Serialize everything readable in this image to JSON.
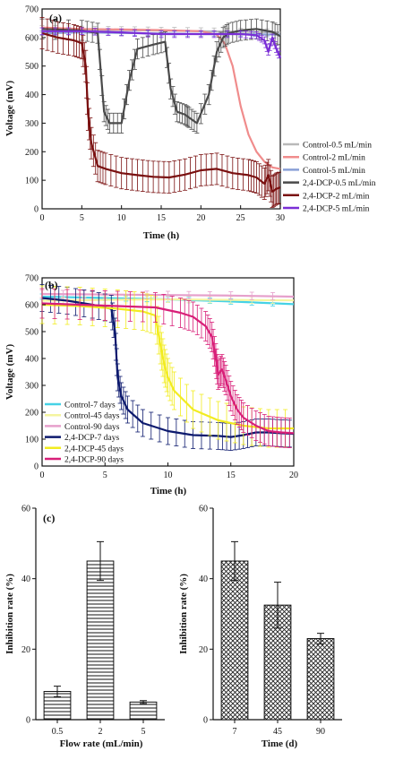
{
  "chart_data": [
    {
      "type": "line",
      "panel_label": "(a)",
      "xlabel": "Time (h)",
      "ylabel": "Voltage (mV)",
      "xlim": [
        0,
        30
      ],
      "ylim": [
        0,
        700
      ],
      "xticks": [
        0,
        5,
        10,
        15,
        20,
        25,
        30
      ],
      "yticks": [
        0,
        100,
        200,
        300,
        400,
        500,
        600,
        700
      ],
      "legend_position": "bottom-right",
      "series": [
        {
          "name": "Control-0.5 mL/min",
          "color": "#b9b9b9",
          "x": [
            0,
            5,
            10,
            15,
            20,
            25,
            30
          ],
          "y": [
            630,
            628,
            626,
            624,
            622,
            620,
            618
          ],
          "err": 12
        },
        {
          "name": "Control-2 mL/min",
          "color": "#f08c8c",
          "x": [
            0,
            5,
            10,
            15,
            20,
            22,
            23,
            24,
            25,
            26,
            27,
            28,
            29,
            30
          ],
          "y": [
            635,
            630,
            628,
            626,
            622,
            610,
            580,
            500,
            360,
            260,
            200,
            165,
            145,
            140
          ],
          "err": 0
        },
        {
          "name": "Control-5 mL/min",
          "color": "#8aa0d6",
          "x": [
            0,
            5,
            10,
            15,
            20,
            25,
            30
          ],
          "y": [
            615,
            618,
            616,
            614,
            612,
            612,
            610
          ],
          "err": 8
        },
        {
          "name": "2,4-DCP-0.5 mL/min",
          "color": "#4a4a4a",
          "x": [
            0,
            5,
            7,
            7.8,
            8.5,
            10,
            11,
            12,
            14,
            15.5,
            16.2,
            17,
            18,
            18.5,
            19.5,
            21,
            22,
            22.8,
            23.5,
            25,
            27,
            29,
            30
          ],
          "y": [
            630,
            625,
            615,
            340,
            300,
            300,
            450,
            560,
            575,
            585,
            420,
            340,
            330,
            320,
            300,
            400,
            550,
            600,
            615,
            625,
            630,
            620,
            605
          ],
          "err": 35
        },
        {
          "name": "2,4-DCP-2 mL/min",
          "color": "#7a1010",
          "x": [
            0,
            2,
            4,
            5,
            5.5,
            5.8,
            6.2,
            7,
            8,
            10,
            12,
            14,
            16,
            18,
            20,
            22,
            24,
            26,
            27,
            28,
            28.5,
            29,
            29.5,
            30
          ],
          "y": [
            615,
            600,
            590,
            580,
            500,
            330,
            230,
            150,
            140,
            125,
            118,
            112,
            110,
            120,
            135,
            140,
            125,
            118,
            110,
            88,
            118,
            60,
            70,
            75
          ],
          "err": 55
        },
        {
          "name": "2,4-DCP-5 mL/min",
          "color": "#7a2ed6",
          "x": [
            0,
            5,
            10,
            15,
            20,
            25,
            27,
            28,
            28.5,
            29,
            29.5,
            30
          ],
          "y": [
            622,
            622,
            618,
            612,
            612,
            612,
            608,
            590,
            550,
            600,
            560,
            530
          ],
          "err": 12
        }
      ]
    },
    {
      "type": "line",
      "panel_label": "(b)",
      "xlabel": "Time (h)",
      "ylabel": "Voltage (mV)",
      "xlim": [
        0,
        20
      ],
      "ylim": [
        0,
        700
      ],
      "xticks": [
        0,
        5,
        10,
        15,
        20
      ],
      "yticks": [
        0,
        100,
        200,
        300,
        400,
        500,
        600,
        700
      ],
      "legend_position": "bottom-left",
      "series": [
        {
          "name": "Control-7 days",
          "color": "#46d2e6",
          "x": [
            0,
            5,
            10,
            15,
            20
          ],
          "y": [
            630,
            625,
            620,
            612,
            602
          ],
          "err": 10
        },
        {
          "name": "Control-45 days",
          "color": "#f5f5a0",
          "x": [
            0,
            5,
            10,
            15,
            20
          ],
          "y": [
            615,
            618,
            620,
            618,
            616
          ],
          "err": 12
        },
        {
          "name": "Control-90 days",
          "color": "#e6a0cc",
          "x": [
            0,
            5,
            10,
            15,
            20
          ],
          "y": [
            640,
            638,
            636,
            634,
            630
          ],
          "err": 14
        },
        {
          "name": "2,4-DCP-7 days",
          "color": "#0d1a6e",
          "x": [
            0,
            2,
            4,
            5.5,
            5.8,
            6,
            6.3,
            6.8,
            8,
            10,
            12,
            14,
            15,
            16,
            17,
            18,
            19,
            20
          ],
          "y": [
            625,
            615,
            600,
            585,
            500,
            330,
            260,
            210,
            160,
            130,
            115,
            112,
            108,
            115,
            125,
            125,
            122,
            120
          ],
          "err": 50
        },
        {
          "name": "2,4-DCP-45 days",
          "color": "#f2ec20",
          "x": [
            0,
            3,
            6,
            8,
            9,
            9.4,
            9.7,
            10,
            10.5,
            12,
            14,
            16,
            18,
            20
          ],
          "y": [
            600,
            595,
            585,
            575,
            560,
            450,
            380,
            330,
            280,
            210,
            170,
            150,
            140,
            140
          ],
          "err": 70
        },
        {
          "name": "2,4-DCP-90 days",
          "color": "#d81f78",
          "x": [
            0,
            3,
            6,
            9,
            11,
            12,
            13,
            13.5,
            13.8,
            14,
            14.3,
            14.6,
            15,
            15.5,
            16,
            17,
            18,
            19,
            20
          ],
          "y": [
            605,
            600,
            595,
            590,
            570,
            555,
            520,
            480,
            400,
            340,
            360,
            320,
            260,
            210,
            180,
            150,
            130,
            125,
            122
          ],
          "err": 55
        }
      ]
    },
    {
      "type": "bar",
      "panel_label": "(c)",
      "xlabel": "Flow rate (mL/min)",
      "ylabel": "Inhibition rate (%)",
      "categories": [
        "0.5",
        "2",
        "5"
      ],
      "values": [
        8,
        45,
        5
      ],
      "errors": [
        1.5,
        5.5,
        0.4
      ],
      "ylim": [
        0,
        60
      ],
      "yticks": [
        0,
        20,
        40,
        60
      ],
      "pattern": "horizontal-lines"
    },
    {
      "type": "bar",
      "panel_label": "",
      "xlabel": "Time (d)",
      "ylabel": "Inhibition rate (%)",
      "categories": [
        "7",
        "45",
        "90"
      ],
      "values": [
        45,
        32.5,
        23
      ],
      "errors": [
        5.5,
        6.5,
        1.5
      ],
      "ylim": [
        0,
        60
      ],
      "yticks": [
        0,
        20,
        40,
        60
      ],
      "pattern": "crosshatch"
    }
  ]
}
